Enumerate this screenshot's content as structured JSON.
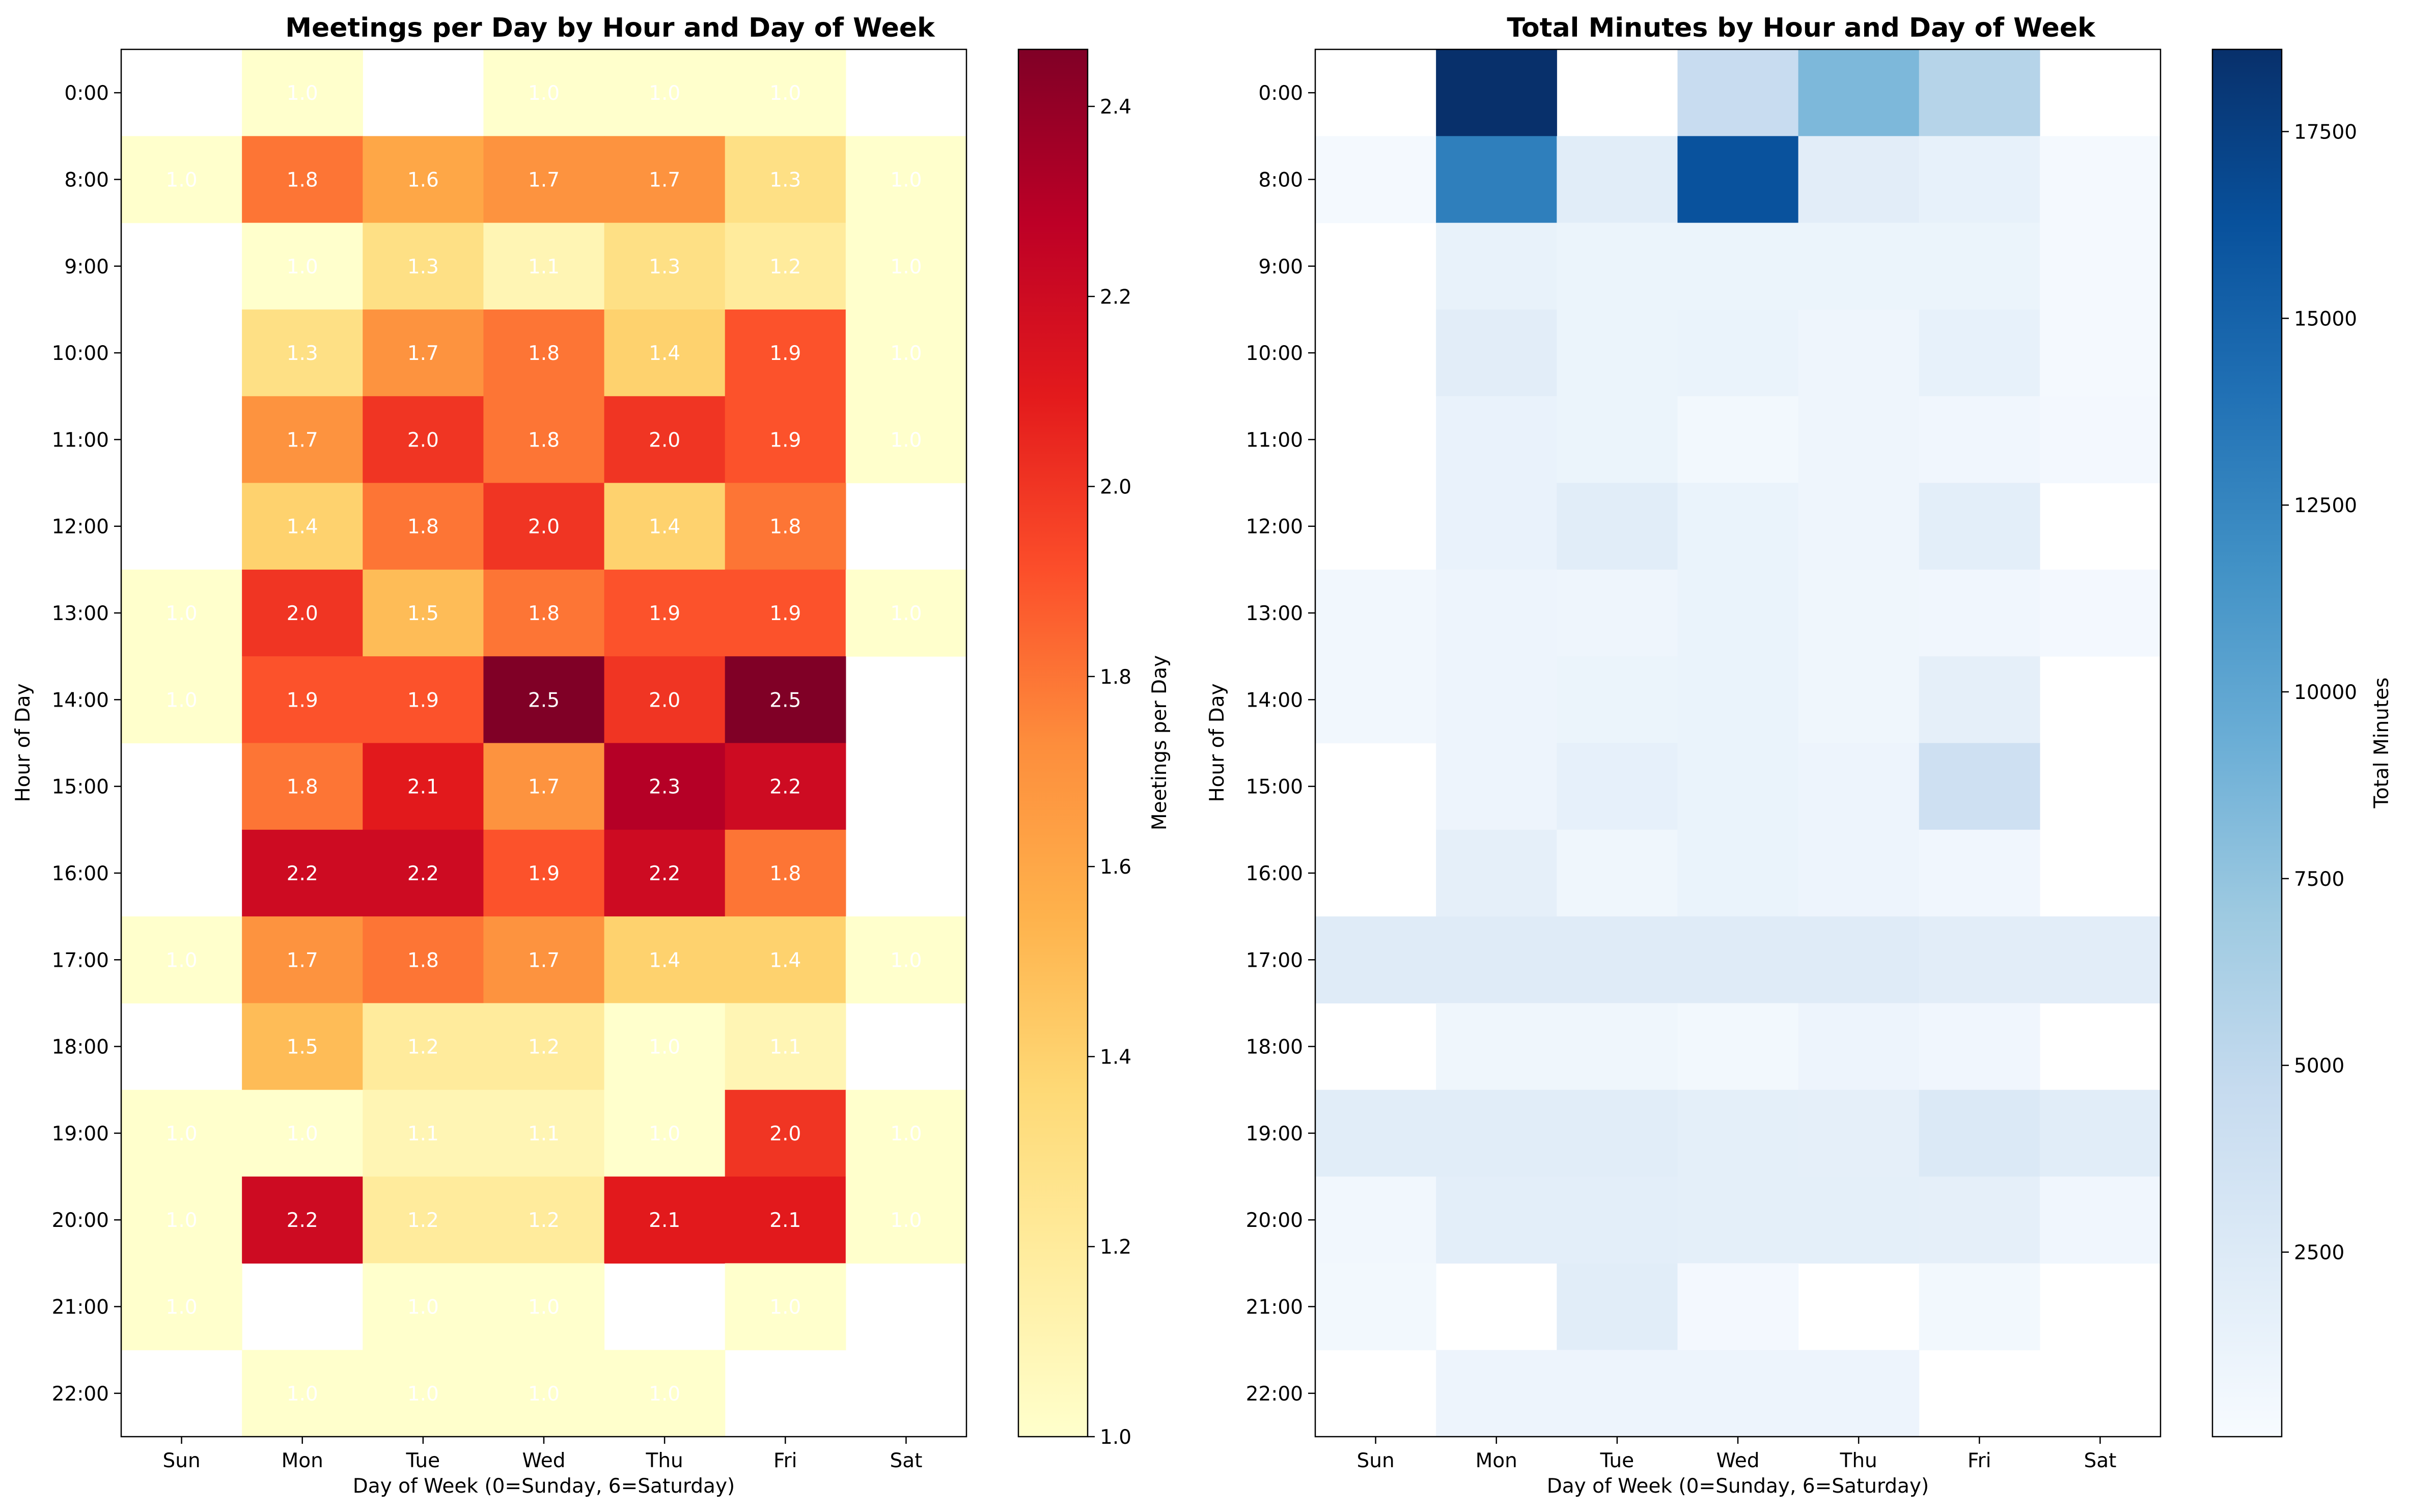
{
  "chart_data": [
    {
      "type": "heatmap",
      "title": "Meetings per Day by Hour and Day of Week",
      "xlabel": "Day of Week (0=Sunday, 6=Saturday)",
      "ylabel": "Hour of Day",
      "colorbar_label": "Meetings per Day",
      "colormap": "YlOrRd",
      "color_range": [
        1.0,
        2.46
      ],
      "colorbar_ticks": [
        "1.0",
        "1.2",
        "1.4",
        "1.6",
        "1.8",
        "2.0",
        "2.2",
        "2.4"
      ],
      "colorbar_tick_values": [
        1.0,
        1.2,
        1.4,
        1.6,
        1.8,
        2.0,
        2.2,
        2.4
      ],
      "x_categories": [
        "Sun",
        "Mon",
        "Tue",
        "Wed",
        "Thu",
        "Fri",
        "Sat"
      ],
      "y_categories": [
        "0:00",
        "8:00",
        "9:00",
        "10:00",
        "11:00",
        "12:00",
        "13:00",
        "14:00",
        "15:00",
        "16:00",
        "17:00",
        "18:00",
        "19:00",
        "20:00",
        "21:00",
        "22:00"
      ],
      "values": [
        [
          null,
          1.0,
          null,
          1.0,
          1.0,
          1.0,
          null
        ],
        [
          1.0,
          1.8,
          1.6,
          1.7,
          1.7,
          1.3,
          1.0
        ],
        [
          null,
          1.0,
          1.3,
          1.1,
          1.3,
          1.2,
          1.0
        ],
        [
          null,
          1.3,
          1.7,
          1.8,
          1.4,
          1.9,
          1.0
        ],
        [
          null,
          1.7,
          2.0,
          1.8,
          2.0,
          1.9,
          1.0
        ],
        [
          null,
          1.4,
          1.8,
          2.0,
          1.4,
          1.8,
          null
        ],
        [
          1.0,
          2.0,
          1.5,
          1.8,
          1.9,
          1.9,
          1.0
        ],
        [
          1.0,
          1.9,
          1.9,
          2.5,
          2.0,
          2.5,
          null
        ],
        [
          null,
          1.8,
          2.1,
          1.7,
          2.3,
          2.2,
          null
        ],
        [
          null,
          2.2,
          2.2,
          1.9,
          2.2,
          1.8,
          null
        ],
        [
          1.0,
          1.7,
          1.8,
          1.7,
          1.4,
          1.4,
          1.0
        ],
        [
          null,
          1.5,
          1.2,
          1.2,
          1.0,
          1.1,
          null
        ],
        [
          1.0,
          1.0,
          1.1,
          1.1,
          1.0,
          2.0,
          1.0
        ],
        [
          1.0,
          2.2,
          1.2,
          1.2,
          2.1,
          2.1,
          1.0
        ],
        [
          1.0,
          null,
          1.0,
          1.0,
          null,
          1.0,
          null
        ],
        [
          null,
          1.0,
          1.0,
          1.0,
          1.0,
          null,
          null
        ]
      ],
      "labels": [
        [
          null,
          "1.0",
          null,
          "1.0",
          "1.0",
          "1.0",
          null
        ],
        [
          "1.0",
          "1.8",
          "1.6",
          "1.7",
          "1.7",
          "1.3",
          "1.0"
        ],
        [
          null,
          "1.0",
          "1.3",
          "1.1",
          "1.3",
          "1.2",
          "1.0"
        ],
        [
          null,
          "1.3",
          "1.7",
          "1.8",
          "1.4",
          "1.9",
          "1.0"
        ],
        [
          null,
          "1.7",
          "2.0",
          "1.8",
          "2.0",
          "1.9",
          "1.0"
        ],
        [
          null,
          "1.4",
          "1.8",
          "2.0",
          "1.4",
          "1.8",
          null
        ],
        [
          "1.0",
          "2.0",
          "1.5",
          "1.8",
          "1.9",
          "1.9",
          "1.0"
        ],
        [
          "1.0",
          "1.9",
          "1.9",
          "2.5",
          "2.0",
          "2.5",
          null
        ],
        [
          null,
          "1.8",
          "2.1",
          "1.7",
          "2.3",
          "2.2",
          null
        ],
        [
          null,
          "2.2",
          "2.2",
          "1.9",
          "2.2",
          "1.8",
          null
        ],
        [
          "1.0",
          "1.7",
          "1.8",
          "1.7",
          "1.4",
          "1.4",
          "1.0"
        ],
        [
          null,
          "1.5",
          "1.2",
          "1.2",
          "1.0",
          "1.1",
          null
        ],
        [
          "1.0",
          "1.0",
          "1.1",
          "1.1",
          "1.0",
          "2.0",
          "1.0"
        ],
        [
          "1.0",
          "2.2",
          "1.2",
          "1.2",
          "2.1",
          "2.1",
          "1.0"
        ],
        [
          "1.0",
          null,
          "1.0",
          "1.0",
          null,
          "1.0",
          null
        ],
        [
          null,
          "1.0",
          "1.0",
          "1.0",
          "1.0",
          null,
          null
        ]
      ]
    },
    {
      "type": "heatmap",
      "title": "Total Minutes by Hour and Day of Week",
      "xlabel": "Day of Week (0=Sunday, 6=Saturday)",
      "ylabel": "Hour of Day",
      "colorbar_label": "Total Minutes",
      "colormap": "Blues",
      "color_range": [
        30,
        18600
      ],
      "colorbar_ticks": [
        "2500",
        "5000",
        "7500",
        "10000",
        "12500",
        "15000",
        "17500"
      ],
      "colorbar_tick_values": [
        2500,
        5000,
        7500,
        10000,
        12500,
        15000,
        17500
      ],
      "x_categories": [
        "Sun",
        "Mon",
        "Tue",
        "Wed",
        "Thu",
        "Fri",
        "Sat"
      ],
      "y_categories": [
        "0:00",
        "8:00",
        "9:00",
        "10:00",
        "11:00",
        "12:00",
        "13:00",
        "14:00",
        "15:00",
        "16:00",
        "17:00",
        "18:00",
        "19:00",
        "20:00",
        "21:00",
        "22:00"
      ],
      "values": [
        [
          null,
          18600,
          null,
          4500,
          8500,
          5600,
          null
        ],
        [
          300,
          13000,
          2100,
          16200,
          2000,
          1500,
          300
        ],
        [
          null,
          1400,
          1100,
          1100,
          1100,
          1100,
          300
        ],
        [
          null,
          2000,
          1100,
          1200,
          900,
          1500,
          300
        ],
        [
          null,
          1300,
          1100,
          500,
          900,
          700,
          400
        ],
        [
          null,
          1300,
          2100,
          1200,
          900,
          1900,
          null
        ],
        [
          600,
          1000,
          900,
          1200,
          800,
          700,
          400
        ],
        [
          600,
          1000,
          1100,
          1200,
          800,
          1700,
          null
        ],
        [
          null,
          1000,
          1600,
          1200,
          1000,
          3900,
          null
        ],
        [
          null,
          1700,
          800,
          1200,
          1000,
          700,
          null
        ],
        [
          2300,
          2300,
          2300,
          2300,
          2300,
          2000,
          2000
        ],
        [
          null,
          800,
          800,
          500,
          1000,
          700,
          null
        ],
        [
          2100,
          2100,
          2100,
          1800,
          1700,
          2600,
          2100
        ],
        [
          600,
          1900,
          1900,
          1800,
          1800,
          1700,
          700
        ],
        [
          500,
          null,
          2100,
          400,
          null,
          500,
          null
        ],
        [
          null,
          1000,
          1000,
          1000,
          1000,
          null,
          null
        ]
      ]
    }
  ]
}
